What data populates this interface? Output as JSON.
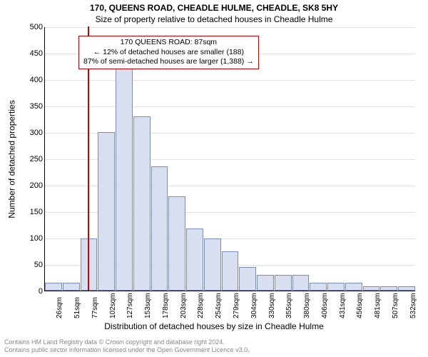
{
  "title_line1": "170, QUEENS ROAD, CHEADLE HULME, CHEADLE, SK8 5HY",
  "title_line2": "Size of property relative to detached houses in Cheadle Hulme",
  "y_axis_label": "Number of detached properties",
  "x_axis_label": "Distribution of detached houses by size in Cheadle Hulme",
  "chart": {
    "type": "histogram",
    "ylim": [
      0,
      500
    ],
    "ytick_step": 50,
    "bar_fill": "#d8dff0",
    "bar_stroke": "#7a8db8",
    "grid_color": "#e0e0e0",
    "marker_color": "#cc0000",
    "marker_x": 87,
    "x_start": 26,
    "x_step": 25.3,
    "bin_count": 21,
    "values": [
      15,
      15,
      98,
      300,
      420,
      330,
      235,
      178,
      118,
      98,
      75,
      45,
      30,
      30,
      30,
      15,
      15,
      15,
      8,
      8,
      8
    ],
    "x_labels": [
      "26sqm",
      "51sqm",
      "77sqm",
      "102sqm",
      "127sqm",
      "153sqm",
      "178sqm",
      "203sqm",
      "228sqm",
      "254sqm",
      "279sqm",
      "304sqm",
      "330sqm",
      "355sqm",
      "380sqm",
      "406sqm",
      "431sqm",
      "456sqm",
      "481sqm",
      "507sqm",
      "532sqm"
    ]
  },
  "annotation": {
    "line1": "170 QUEENS ROAD: 87sqm",
    "line2": "← 12% of detached houses are smaller (188)",
    "line3": "87% of semi-detached houses are larger (1,388) →"
  },
  "footer_line1": "Contains HM Land Registry data © Crown copyright and database right 2024.",
  "footer_line2": "Contains public sector information licensed under the Open Government Licence v3.0."
}
